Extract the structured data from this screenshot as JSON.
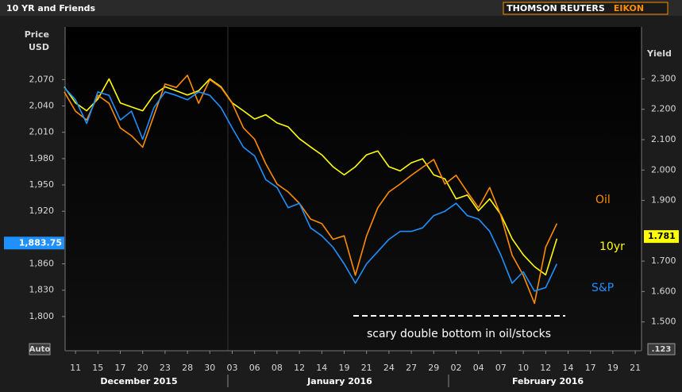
{
  "chart_data": {
    "type": "line",
    "title": "10 YR and Friends",
    "logo": [
      "THOMSON REUTERS",
      "EIKON"
    ],
    "y_label": [
      "Price",
      "USD"
    ],
    "y2_label": "Yield",
    "categories": [
      null,
      "11",
      null,
      "15",
      null,
      "17",
      null,
      "20",
      null,
      "23",
      null,
      "28",
      null,
      "30",
      null,
      "03",
      null,
      "06",
      null,
      "08",
      null,
      "12",
      null,
      "14",
      null,
      "19",
      null,
      "21",
      null,
      "24",
      null,
      "27",
      null,
      "29",
      null,
      "02",
      null,
      "04",
      null,
      "07",
      null,
      "10",
      null,
      "12",
      null,
      "14",
      null,
      "17",
      null,
      "19",
      null,
      "21"
    ],
    "months": [
      "December 2015",
      "January 2016",
      "February 2016"
    ],
    "ylim": [
      1761,
      2130
    ],
    "yticks": [
      {
        "value": 1800,
        "label": "1,800"
      },
      {
        "value": 1830,
        "label": "1,830"
      },
      {
        "value": 1860,
        "label": "1,860"
      },
      {
        "value": 1920,
        "label": "1,920"
      },
      {
        "value": 1950,
        "label": "1,950"
      },
      {
        "value": 1980,
        "label": "1,980"
      },
      {
        "value": 2010,
        "label": "2,010"
      },
      {
        "value": 2040,
        "label": "2,040"
      },
      {
        "value": 2070,
        "label": "2,070"
      }
    ],
    "y2lim": [
      1.405,
      2.471
    ],
    "y2ticks": [
      {
        "value": 1.5,
        "label": "1.500"
      },
      {
        "value": 1.6,
        "label": "1.600"
      },
      {
        "value": 1.7,
        "label": "1.700"
      },
      {
        "value": 1.9,
        "label": "1.900"
      },
      {
        "value": 2.0,
        "label": "2.000"
      },
      {
        "value": 2.1,
        "label": "2.100"
      },
      {
        "value": 2.2,
        "label": "2.200"
      },
      {
        "value": 2.3,
        "label": "2.300"
      }
    ],
    "series": [
      {
        "name": "S&P",
        "color": "#1e90ff",
        "axis": "y",
        "last_value": {
          "value": 1883.75,
          "label": "1,883.75"
        },
        "values": [
          2061,
          2047,
          2020,
          2056,
          2052,
          2024,
          2034,
          2002,
          2038,
          2056,
          2052,
          2047,
          2056,
          2052,
          2038,
          2015,
          1993,
          1983,
          1956,
          1947,
          1924,
          1929,
          1901,
          1892,
          1879,
          1860,
          1838,
          1860,
          1874,
          1888,
          1897,
          1897,
          1901,
          1915,
          1920,
          1929,
          1915,
          1911,
          1897,
          1870,
          1838,
          1851,
          1829,
          1833,
          1860,
          null,
          null,
          null,
          null,
          null,
          null,
          null
        ]
      },
      {
        "name": "10yr",
        "color": "#ffff00",
        "axis": "y2",
        "last_value": {
          "value": 1.781,
          "label": "1.781"
        },
        "values": [
          2.274,
          2.221,
          2.195,
          2.234,
          2.3,
          2.221,
          2.208,
          2.195,
          2.247,
          2.274,
          2.261,
          2.247,
          2.261,
          2.3,
          2.274,
          2.221,
          2.195,
          2.168,
          2.182,
          2.155,
          2.142,
          2.103,
          2.076,
          2.05,
          2.011,
          1.984,
          2.011,
          2.05,
          2.063,
          2.011,
          1.997,
          2.024,
          2.037,
          1.984,
          1.971,
          1.905,
          1.918,
          1.866,
          1.905,
          1.853,
          1.774,
          1.721,
          1.682,
          1.655,
          1.774,
          null,
          null,
          null,
          null,
          null,
          null,
          null
        ]
      },
      {
        "name": "Oil",
        "color": "#ff8c00",
        "axis": "y",
        "values": [
          2056,
          2034,
          2024,
          2052,
          2043,
          2015,
          2006,
          1993,
          2029,
          2065,
          2061,
          2075,
          2043,
          2070,
          2061,
          2043,
          2015,
          2002,
          1974,
          1951,
          1942,
          1929,
          1911,
          1906,
          1888,
          1892,
          1847,
          1892,
          1924,
          1942,
          1951,
          1961,
          1970,
          1979,
          1951,
          1961,
          1942,
          1924,
          1947,
          1915,
          1870,
          1847,
          1815,
          1879,
          1906,
          null,
          null,
          null,
          null,
          null,
          null,
          null
        ]
      }
    ],
    "annotation": "scary double bottom in oil/stocks",
    "y_scale_mode": "Auto",
    "y2_scale_mode": ".123"
  }
}
